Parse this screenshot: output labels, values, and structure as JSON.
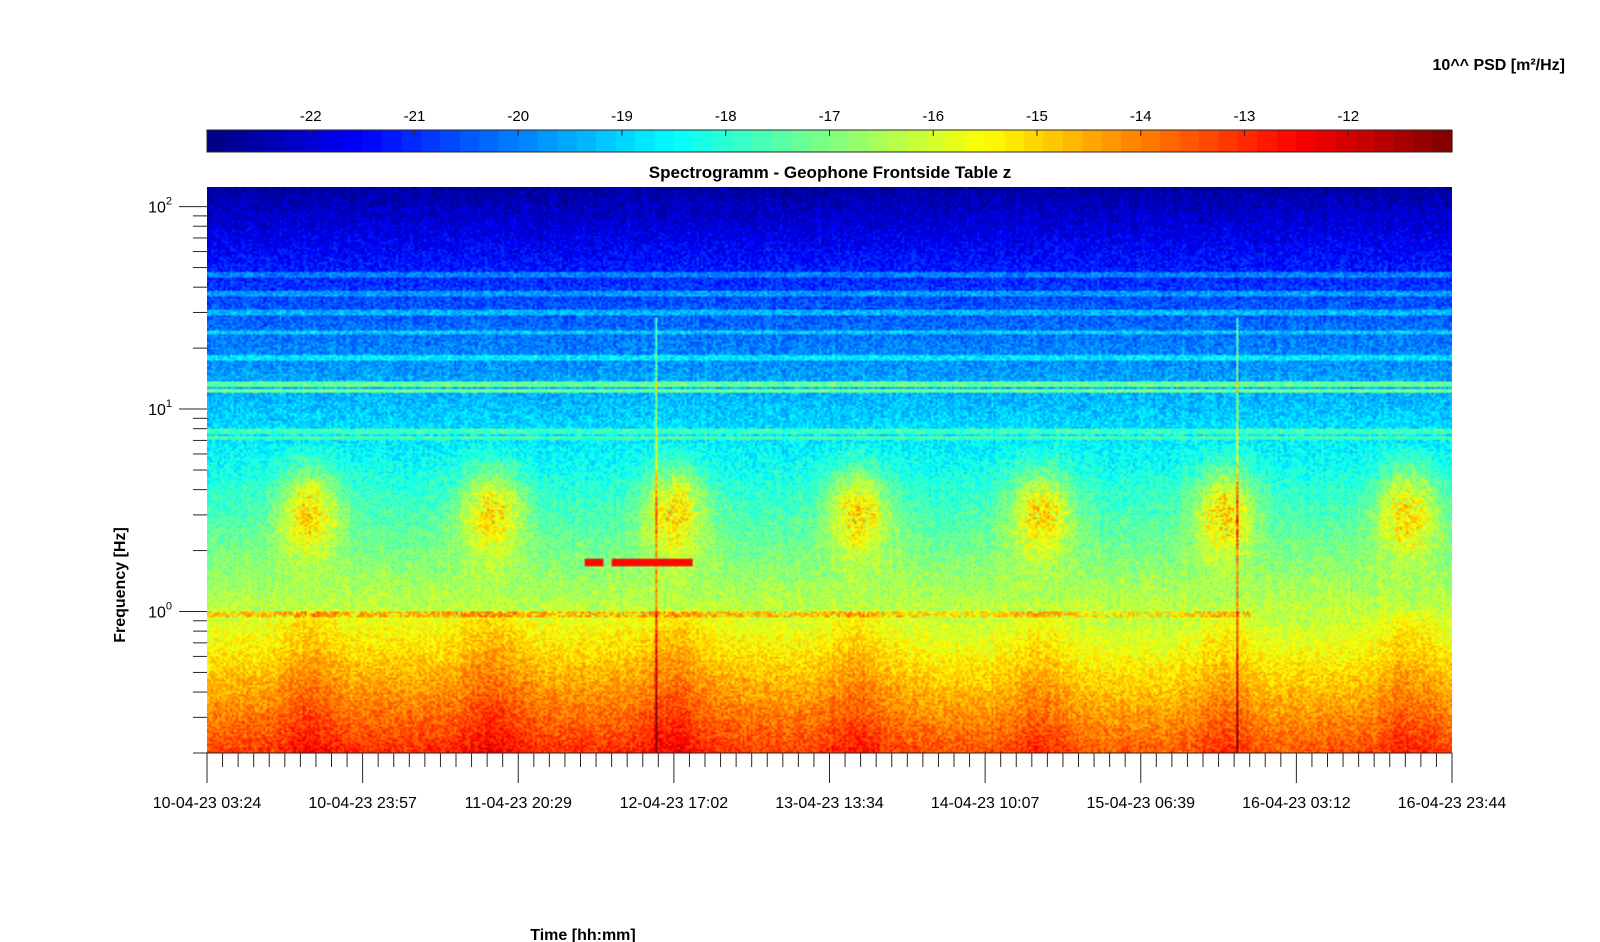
{
  "chart_data": {
    "type": "heatmap",
    "title": "Spectrogramm - Geophone Frontside Table z",
    "xlabel": "Time [hh:mm]",
    "ylabel": "Frequency [Hz]",
    "y_scale": "log",
    "ylim": [
      0.2,
      125
    ],
    "y_ticks": [
      {
        "base": "10",
        "exp": "2",
        "value": 100
      },
      {
        "base": "10",
        "exp": "1",
        "value": 10
      },
      {
        "base": "10",
        "exp": "0",
        "value": 1
      }
    ],
    "x_ticks": [
      "10-04-23 03:24",
      "10-04-23 23:57",
      "11-04-23 20:29",
      "12-04-23 17:02",
      "13-04-23 13:34",
      "14-04-23 10:07",
      "15-04-23 06:39",
      "16-04-23 03:12",
      "16-04-23 23:44"
    ],
    "colorbar": {
      "label": "10^^ PSD [m²/Hz]",
      "colormap": "jet",
      "range": [
        -23,
        -11
      ],
      "ticks": [
        "-22",
        "-21",
        "-20",
        "-19",
        "-18",
        "-17",
        "-16",
        "-15",
        "-14",
        "-13",
        "-12"
      ]
    },
    "features": {
      "daily_activity_peaks_hz": [
        2,
        6
      ],
      "line_near_1hz": 0.97,
      "narrowband_lines_hz": [
        7.2,
        7.8,
        12.3,
        13.2,
        18,
        24,
        30,
        37,
        46
      ],
      "broadband_spike_days": [
        2.45,
        5.62
      ],
      "red_bar_hz": 1.75
    }
  }
}
